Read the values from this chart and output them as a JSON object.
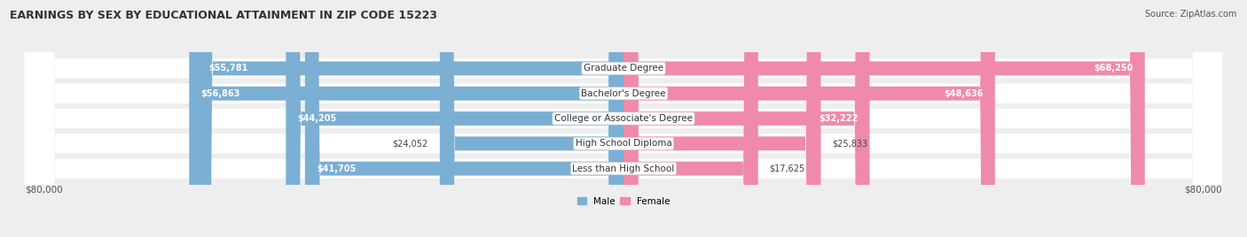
{
  "title": "EARNINGS BY SEX BY EDUCATIONAL ATTAINMENT IN ZIP CODE 15223",
  "source": "Source: ZipAtlas.com",
  "categories": [
    "Less than High School",
    "High School Diploma",
    "College or Associate's Degree",
    "Bachelor's Degree",
    "Graduate Degree"
  ],
  "male_values": [
    41705,
    24052,
    44205,
    56863,
    55781
  ],
  "female_values": [
    17625,
    25833,
    32222,
    48636,
    68250
  ],
  "male_color": "#7bafd4",
  "female_color": "#f08aaa",
  "male_label": "Male",
  "female_label": "Female",
  "max_val": 80000,
  "bg_color": "#eeeeee",
  "title_fontsize": 9,
  "source_fontsize": 7,
  "label_fontsize": 7.5,
  "bar_label_fontsize": 7
}
